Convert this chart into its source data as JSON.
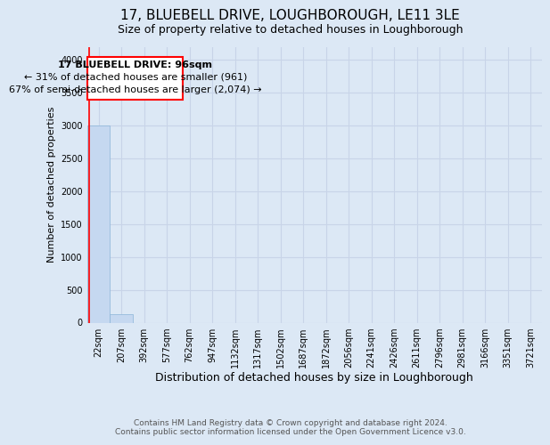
{
  "title": "17, BLUEBELL DRIVE, LOUGHBOROUGH, LE11 3LE",
  "subtitle": "Size of property relative to detached houses in Loughborough",
  "xlabel": "Distribution of detached houses by size in Loughborough",
  "ylabel": "Number of detached properties",
  "footer_line1": "Contains HM Land Registry data © Crown copyright and database right 2024.",
  "footer_line2": "Contains public sector information licensed under the Open Government Licence v3.0.",
  "annotation_line1": "17 BLUEBELL DRIVE: 96sqm",
  "annotation_line2": "← 31% of detached houses are smaller (961)",
  "annotation_line3": "67% of semi-detached houses are larger (2,074) →",
  "bar_values": [
    3000,
    130,
    0,
    0,
    0,
    0,
    0,
    0,
    0,
    0,
    0,
    0,
    0,
    0,
    0,
    0,
    0,
    0,
    0,
    0
  ],
  "bar_color": "#c5d8f0",
  "bar_edge_color": "#8ab4d8",
  "x_labels": [
    "22sqm",
    "207sqm",
    "392sqm",
    "577sqm",
    "762sqm",
    "947sqm",
    "1132sqm",
    "1317sqm",
    "1502sqm",
    "1687sqm",
    "1872sqm",
    "2056sqm",
    "2241sqm",
    "2426sqm",
    "2611sqm",
    "2796sqm",
    "2981sqm",
    "3166sqm",
    "3351sqm",
    "3721sqm"
  ],
  "ylim": [
    0,
    4200
  ],
  "yticks": [
    0,
    500,
    1000,
    1500,
    2000,
    2500,
    3000,
    3500,
    4000
  ],
  "grid_color": "#c8d4e8",
  "bg_color": "#dce8f5",
  "title_fontsize": 11,
  "subtitle_fontsize": 9,
  "xlabel_fontsize": 9,
  "ylabel_fontsize": 8,
  "tick_fontsize": 7,
  "footer_fontsize": 6.5,
  "annotation_fontsize": 8
}
